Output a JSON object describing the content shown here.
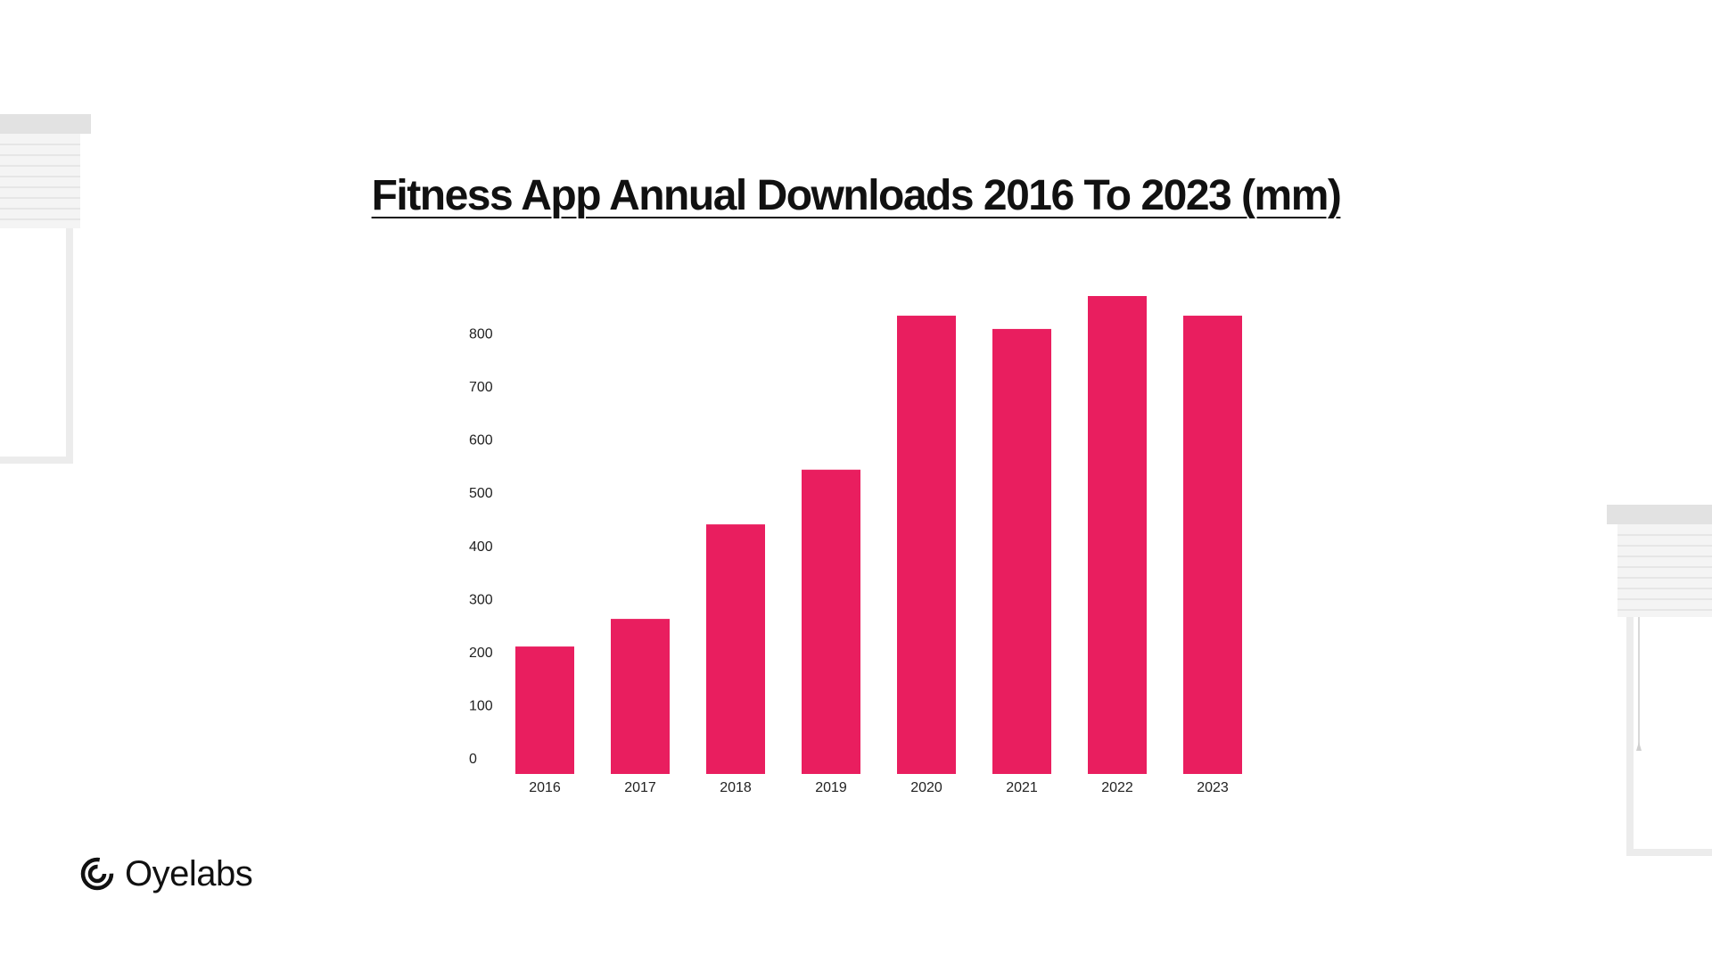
{
  "brand": {
    "name": "Oyelabs",
    "icon": "oyelabs-logo-icon"
  },
  "decor": {
    "left_icon": "window-blind-icon",
    "right_icon": "window-blind-icon"
  },
  "colors": {
    "bar": "#E91E5F",
    "text": "#111111",
    "decor": "#E6E6E6"
  },
  "chart_data": {
    "type": "bar",
    "title": "Fitness App Annual Downloads 2016 To 2023 (mm)",
    "xlabel": "",
    "ylabel": "",
    "categories": [
      "2016",
      "2017",
      "2018",
      "2019",
      "2020",
      "2021",
      "2022",
      "2023"
    ],
    "values": [
      240,
      292,
      470,
      573,
      863,
      838,
      900,
      863
    ],
    "yticks": [
      "0",
      "100",
      "200",
      "300",
      "400",
      "500",
      "600",
      "700",
      "800"
    ],
    "ylim": [
      0,
      900
    ],
    "grid": false,
    "legend": "none"
  }
}
